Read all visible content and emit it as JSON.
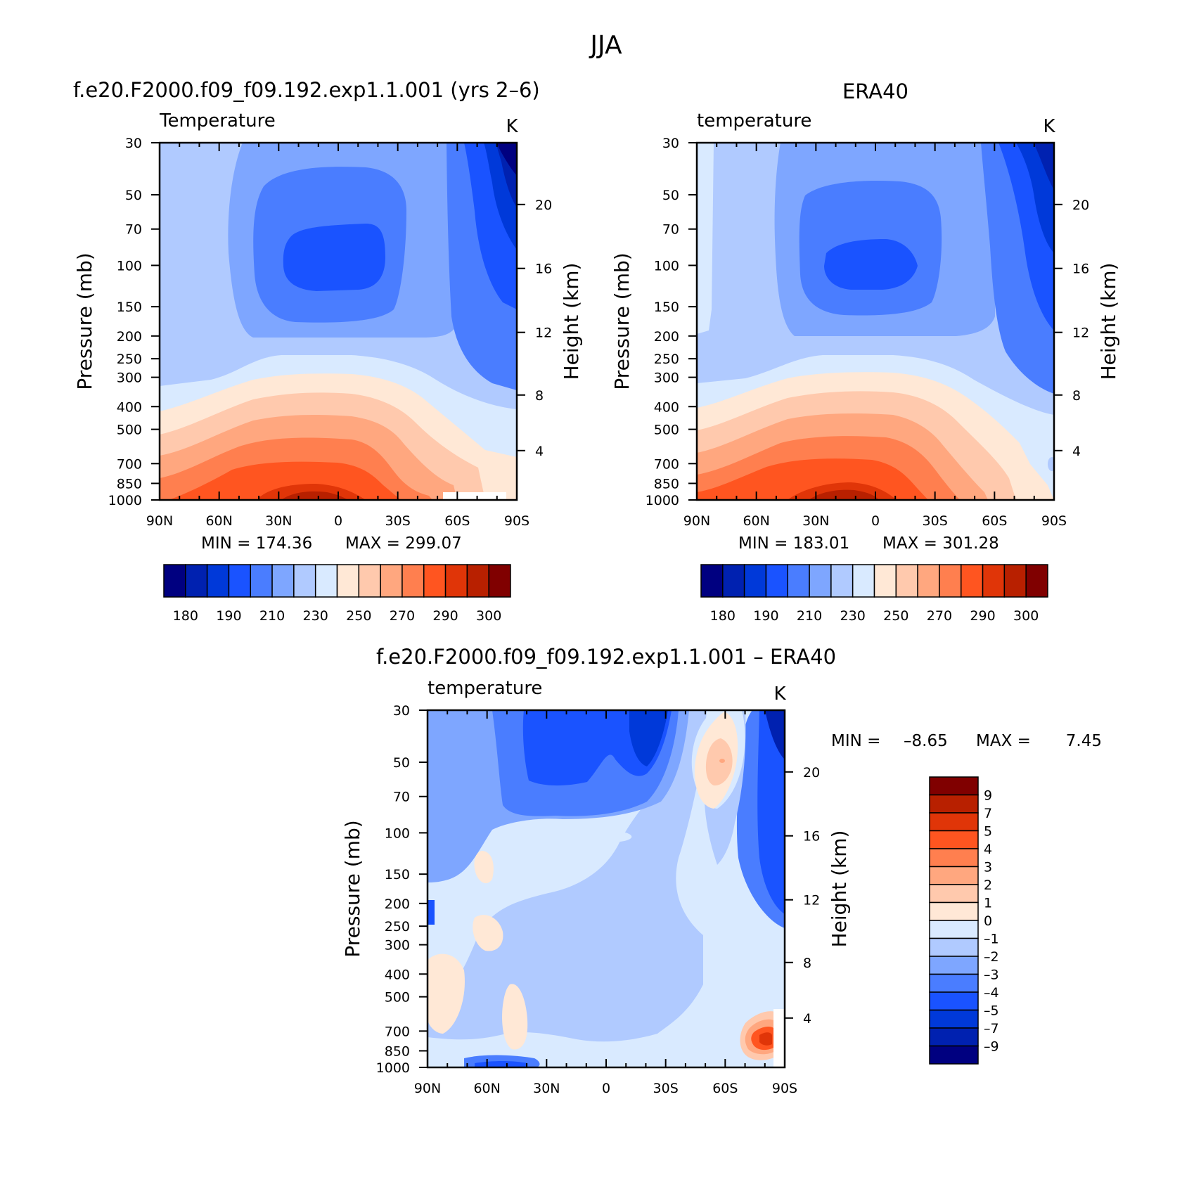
{
  "figure": {
    "title": "JJA"
  },
  "chart_data": [
    {
      "type": "heatmap",
      "title": "f.e20.F2000.f09_f09.192.exp1.1.001 (yrs 2–6)",
      "variable_label": "Temperature",
      "units": "K",
      "xlabel": "",
      "ylabel": "Pressure (mb)",
      "y2label": "Height (km)",
      "x_ticks": [
        "90N",
        "60N",
        "30N",
        "0",
        "30S",
        "60S",
        "90S"
      ],
      "y_ticks": [
        30,
        50,
        70,
        100,
        150,
        200,
        250,
        300,
        400,
        500,
        700,
        850,
        1000
      ],
      "y2_ticks": [
        4,
        8,
        12,
        16,
        20
      ],
      "y_scale": "log",
      "ylim": [
        1000,
        30
      ],
      "min_label": "MIN = 174.36",
      "max_label": "MAX = 299.07",
      "min": 174.36,
      "max": 299.07,
      "colorbar": {
        "orientation": "horizontal",
        "tick_labels": [
          "180",
          "190",
          "210",
          "230",
          "250",
          "270",
          "290",
          "300"
        ],
        "colors": [
          "#000080",
          "#0021b0",
          "#0039d9",
          "#1a53ff",
          "#4a7dff",
          "#7ea6ff",
          "#b0caff",
          "#d9eaff",
          "#ffe8d6",
          "#ffc9ad",
          "#ffa77f",
          "#ff7f4f",
          "#ff5520",
          "#e03508",
          "#b82000",
          "#800000"
        ]
      }
    },
    {
      "type": "heatmap",
      "title": "ERA40",
      "variable_label": "temperature",
      "units": "K",
      "xlabel": "",
      "ylabel": "Pressure (mb)",
      "y2label": "Height (km)",
      "x_ticks": [
        "90N",
        "60N",
        "30N",
        "0",
        "30S",
        "60S",
        "90S"
      ],
      "y_ticks": [
        30,
        50,
        70,
        100,
        150,
        200,
        250,
        300,
        400,
        500,
        700,
        850,
        1000
      ],
      "y2_ticks": [
        4,
        8,
        12,
        16,
        20
      ],
      "y_scale": "log",
      "ylim": [
        1000,
        30
      ],
      "min_label": "MIN = 183.01",
      "max_label": "MAX = 301.28",
      "min": 183.01,
      "max": 301.28,
      "colorbar": {
        "orientation": "horizontal",
        "tick_labels": [
          "180",
          "190",
          "210",
          "230",
          "250",
          "270",
          "290",
          "300"
        ],
        "colors": [
          "#000080",
          "#0021b0",
          "#0039d9",
          "#1a53ff",
          "#4a7dff",
          "#7ea6ff",
          "#b0caff",
          "#d9eaff",
          "#ffe8d6",
          "#ffc9ad",
          "#ffa77f",
          "#ff7f4f",
          "#ff5520",
          "#e03508",
          "#b82000",
          "#800000"
        ]
      }
    },
    {
      "type": "heatmap",
      "title": "f.e20.F2000.f09_f09.192.exp1.1.001 – ERA40",
      "variable_label": "temperature",
      "units": "K",
      "xlabel": "",
      "ylabel": "Pressure (mb)",
      "y2label": "Height (km)",
      "x_ticks": [
        "90N",
        "60N",
        "30N",
        "0",
        "30S",
        "60S",
        "90S"
      ],
      "y_ticks": [
        30,
        50,
        70,
        100,
        150,
        200,
        250,
        300,
        400,
        500,
        700,
        850,
        1000
      ],
      "y2_ticks": [
        4,
        8,
        12,
        16,
        20
      ],
      "y_scale": "log",
      "ylim": [
        1000,
        30
      ],
      "min_label": "MIN =",
      "min_value": "–8.65",
      "max_label": "MAX =",
      "max_value": "7.45",
      "min": -8.65,
      "max": 7.45,
      "colorbar": {
        "orientation": "vertical",
        "tick_labels": [
          "9",
          "7",
          "5",
          "4",
          "3",
          "2",
          "1",
          "0",
          "–1",
          "–2",
          "–3",
          "–4",
          "–5",
          "–7",
          "–9"
        ],
        "colors": [
          "#800000",
          "#b82000",
          "#e03508",
          "#ff5520",
          "#ff7f4f",
          "#ffa77f",
          "#ffc9ad",
          "#ffe8d6",
          "#d9eaff",
          "#b0caff",
          "#7ea6ff",
          "#4a7dff",
          "#1a53ff",
          "#0039d9",
          "#0021b0",
          "#000080"
        ]
      }
    }
  ]
}
